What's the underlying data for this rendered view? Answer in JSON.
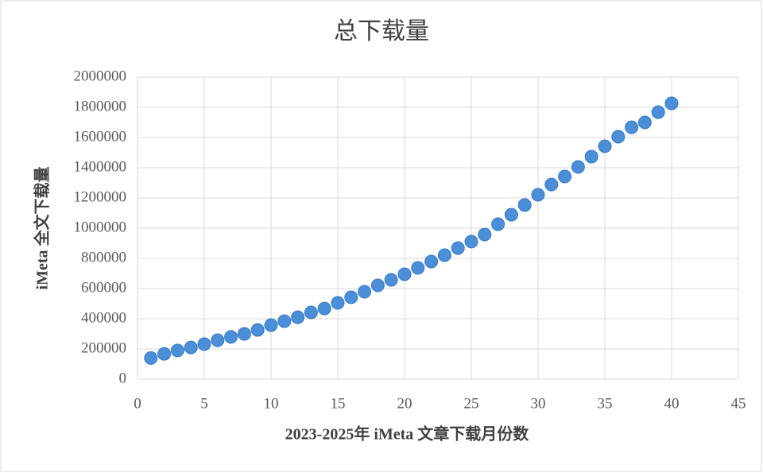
{
  "chart_data": {
    "type": "scatter",
    "title": "总下载量",
    "x_label": "2023-2025年 iMeta 文章下载月份数",
    "y_label": "iMeta 全文下载量",
    "x": [
      1,
      2,
      3,
      4,
      5,
      6,
      7,
      8,
      9,
      10,
      11,
      12,
      13,
      14,
      15,
      16,
      17,
      18,
      19,
      20,
      21,
      22,
      23,
      24,
      25,
      26,
      27,
      28,
      29,
      30,
      31,
      32,
      33,
      34,
      35,
      36,
      37,
      38,
      39,
      40
    ],
    "values": [
      140000,
      168000,
      190000,
      210000,
      232000,
      258000,
      280000,
      300000,
      326000,
      358000,
      384000,
      410000,
      442000,
      468000,
      505000,
      542000,
      579000,
      621000,
      658000,
      695000,
      737000,
      779000,
      821000,
      868000,
      911000,
      958000,
      1026000,
      1089000,
      1153000,
      1221000,
      1289000,
      1342000,
      1405000,
      1474000,
      1542000,
      1605000,
      1668000,
      1700000,
      1768000,
      1826000
    ],
    "color": "#4a8fd8",
    "xlim": [
      0,
      45
    ],
    "xticks": [
      0,
      5,
      10,
      15,
      20,
      25,
      30,
      35,
      40,
      45
    ],
    "ylim": [
      0,
      2000000
    ],
    "yticks": [
      0,
      200000,
      400000,
      600000,
      800000,
      1000000,
      1200000,
      1400000,
      1600000,
      1800000,
      2000000
    ],
    "grid": true
  }
}
